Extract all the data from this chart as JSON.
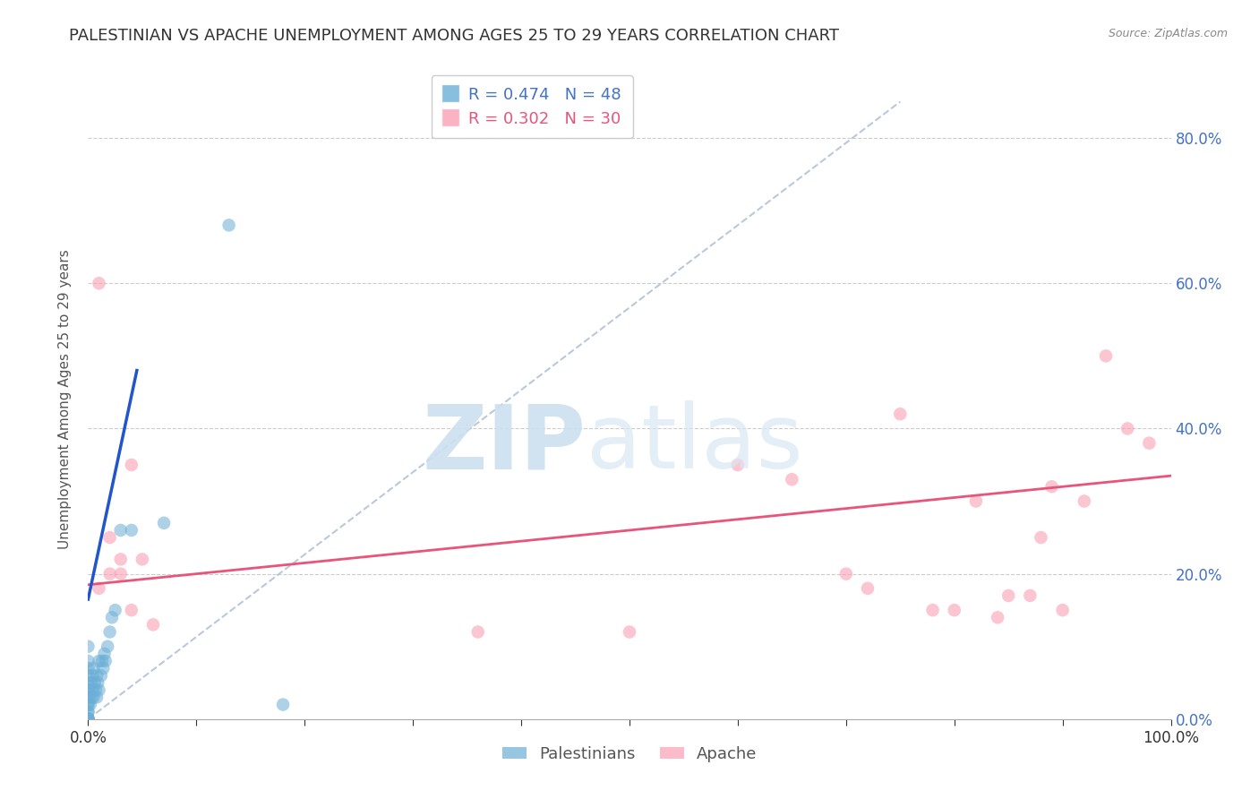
{
  "title": "PALESTINIAN VS APACHE UNEMPLOYMENT AMONG AGES 25 TO 29 YEARS CORRELATION CHART",
  "source": "Source: ZipAtlas.com",
  "ylabel": "Unemployment Among Ages 25 to 29 years",
  "xlim": [
    0,
    1.0
  ],
  "ylim": [
    0,
    0.88
  ],
  "xtick_vals": [
    0.0,
    0.1,
    0.2,
    0.3,
    0.4,
    0.5,
    0.6,
    0.7,
    0.8,
    0.9,
    1.0
  ],
  "xtick_labels": [
    "0.0%",
    "",
    "",
    "",
    "",
    "",
    "",
    "",
    "",
    "",
    "100.0%"
  ],
  "ytick_vals": [
    0.0,
    0.2,
    0.4,
    0.6,
    0.8
  ],
  "ytick_labels_right": [
    "0.0%",
    "20.0%",
    "40.0%",
    "60.0%",
    "80.0%"
  ],
  "palestinian_color": "#6baed6",
  "apache_color": "#fa9fb5",
  "palestinian_R": 0.474,
  "palestinian_N": 48,
  "apache_R": 0.302,
  "apache_N": 30,
  "background_color": "#ffffff",
  "axis_label_color": "#4472c4",
  "palestinians_scatter_x": [
    0.0,
    0.0,
    0.0,
    0.0,
    0.0,
    0.0,
    0.0,
    0.0,
    0.0,
    0.0,
    0.0,
    0.0,
    0.0,
    0.0,
    0.0,
    0.0,
    0.0,
    0.0,
    0.0,
    0.0,
    0.002,
    0.003,
    0.003,
    0.004,
    0.004,
    0.005,
    0.005,
    0.006,
    0.007,
    0.008,
    0.008,
    0.009,
    0.01,
    0.01,
    0.012,
    0.013,
    0.014,
    0.015,
    0.016,
    0.018,
    0.02,
    0.022,
    0.025,
    0.03,
    0.04,
    0.07,
    0.13,
    0.18
  ],
  "palestinians_scatter_y": [
    0.0,
    0.0,
    0.0,
    0.0,
    0.0,
    0.0,
    0.0,
    0.01,
    0.01,
    0.02,
    0.02,
    0.03,
    0.03,
    0.04,
    0.04,
    0.05,
    0.06,
    0.07,
    0.08,
    0.1,
    0.02,
    0.03,
    0.05,
    0.04,
    0.06,
    0.03,
    0.07,
    0.05,
    0.04,
    0.03,
    0.06,
    0.05,
    0.04,
    0.08,
    0.06,
    0.08,
    0.07,
    0.09,
    0.08,
    0.1,
    0.12,
    0.14,
    0.15,
    0.26,
    0.26,
    0.27,
    0.68,
    0.02
  ],
  "apache_scatter_x": [
    0.01,
    0.01,
    0.02,
    0.02,
    0.03,
    0.03,
    0.04,
    0.04,
    0.05,
    0.06,
    0.36,
    0.5,
    0.6,
    0.65,
    0.7,
    0.72,
    0.75,
    0.78,
    0.8,
    0.82,
    0.84,
    0.85,
    0.87,
    0.88,
    0.89,
    0.9,
    0.92,
    0.94,
    0.96,
    0.98
  ],
  "apache_scatter_y": [
    0.18,
    0.6,
    0.25,
    0.2,
    0.22,
    0.2,
    0.35,
    0.15,
    0.22,
    0.13,
    0.12,
    0.12,
    0.35,
    0.33,
    0.2,
    0.18,
    0.42,
    0.15,
    0.15,
    0.3,
    0.14,
    0.17,
    0.17,
    0.25,
    0.32,
    0.15,
    0.3,
    0.5,
    0.4,
    0.38
  ],
  "blue_line_x": [
    0.0,
    0.045
  ],
  "blue_line_y": [
    0.165,
    0.48
  ],
  "dashed_line_x": [
    0.0,
    0.75
  ],
  "dashed_line_y": [
    0.0,
    0.85
  ],
  "pink_line_x": [
    0.0,
    1.0
  ],
  "pink_line_y": [
    0.185,
    0.335
  ],
  "marker_size": 110,
  "title_fontsize": 13,
  "label_fontsize": 11,
  "tick_fontsize": 12
}
